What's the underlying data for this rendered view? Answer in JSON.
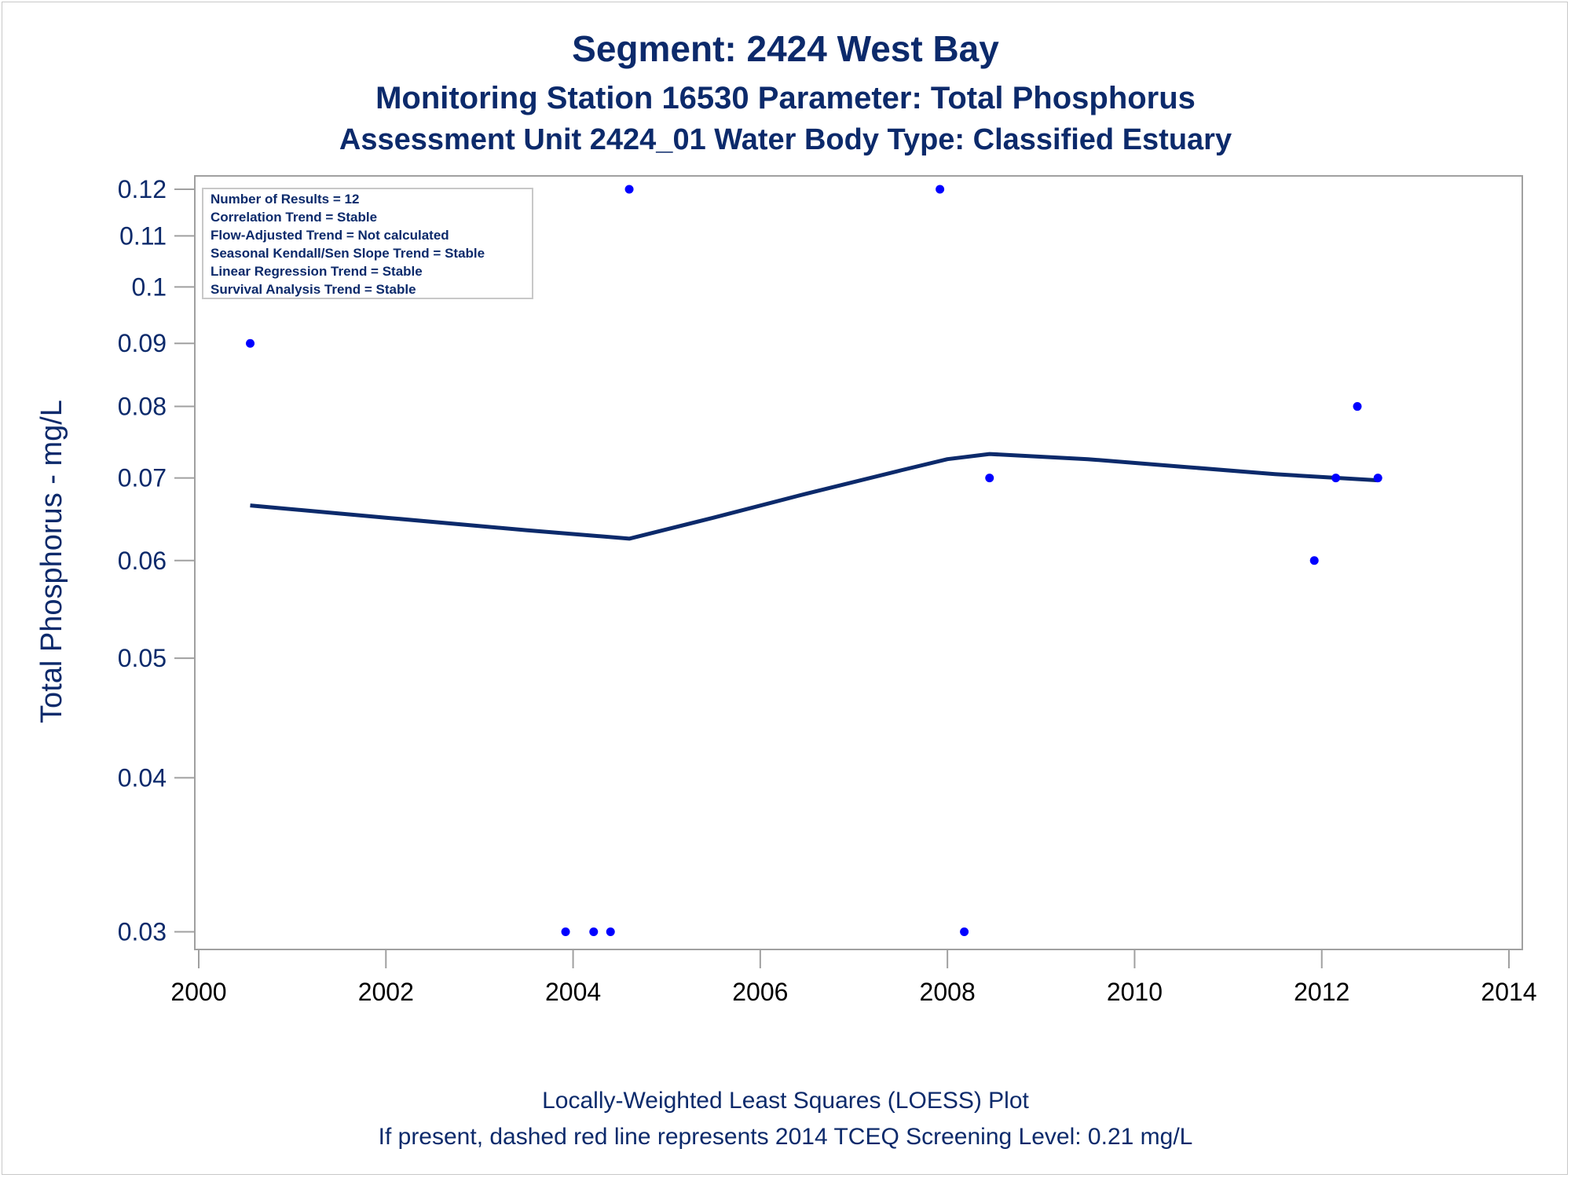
{
  "chart_data": {
    "type": "scatter",
    "title": "Segment: 2424  West Bay",
    "subtitle": "Monitoring Station 16530 Parameter: Total Phosphorus",
    "subtitle2": "Assessment Unit 2424_01   Water Body Type: Classified Estuary",
    "xlabel": "",
    "ylabel": "Total Phosphorus - mg/L",
    "yscale": "log",
    "xlim": [
      2000,
      2014
    ],
    "ylim": [
      0.0295,
      0.12
    ],
    "xticks": [
      2000,
      2002,
      2004,
      2006,
      2008,
      2010,
      2012,
      2014
    ],
    "yticks": [
      0.03,
      0.04,
      0.05,
      0.06,
      0.07,
      0.08,
      0.09,
      0.1,
      0.11,
      0.12
    ],
    "ytick_labels": [
      "0.03",
      "0.04",
      "0.05",
      "0.06",
      "0.07",
      "0.08",
      "0.09",
      "0.1",
      "0.11",
      "0.12"
    ],
    "xtick_labels": [
      "2000",
      "2002",
      "2004",
      "2006",
      "2008",
      "2010",
      "2012",
      "2014"
    ],
    "grid": false,
    "points": [
      {
        "x": 2000.55,
        "y": 0.09
      },
      {
        "x": 2003.92,
        "y": 0.03
      },
      {
        "x": 2004.22,
        "y": 0.03
      },
      {
        "x": 2004.4,
        "y": 0.03
      },
      {
        "x": 2004.6,
        "y": 0.12
      },
      {
        "x": 2007.92,
        "y": 0.12
      },
      {
        "x": 2008.18,
        "y": 0.03
      },
      {
        "x": 2008.45,
        "y": 0.07
      },
      {
        "x": 2011.92,
        "y": 0.06
      },
      {
        "x": 2012.15,
        "y": 0.07
      },
      {
        "x": 2012.38,
        "y": 0.08
      },
      {
        "x": 2012.6,
        "y": 0.07
      }
    ],
    "loess": [
      {
        "x": 2000.55,
        "y": 0.0665
      },
      {
        "x": 2002.0,
        "y": 0.065
      },
      {
        "x": 2003.5,
        "y": 0.0635
      },
      {
        "x": 2004.6,
        "y": 0.0625
      },
      {
        "x": 2005.5,
        "y": 0.065
      },
      {
        "x": 2006.5,
        "y": 0.068
      },
      {
        "x": 2007.5,
        "y": 0.071
      },
      {
        "x": 2008.0,
        "y": 0.0725
      },
      {
        "x": 2008.45,
        "y": 0.0732
      },
      {
        "x": 2009.5,
        "y": 0.0725
      },
      {
        "x": 2010.5,
        "y": 0.0715
      },
      {
        "x": 2011.5,
        "y": 0.0705
      },
      {
        "x": 2012.6,
        "y": 0.0697
      }
    ],
    "annotations": [
      "Number of Results = 12",
      "Correlation Trend = Stable",
      "Flow-Adjusted Trend = Not calculated",
      "Seasonal Kendall/Sen Slope Trend = Stable",
      "Linear Regression Trend = Stable",
      "Survival Analysis Trend = Stable"
    ],
    "footnote1": "Locally-Weighted Least Squares (LOESS) Plot",
    "footnote2": "If present, dashed red line represents 2014 TCEQ Screening Level: 0.21 mg/L",
    "colors": {
      "points": "#0000ff",
      "line": "#0c2a6b",
      "text": "#0c2a6b",
      "axis": "#a0a0a0"
    }
  }
}
